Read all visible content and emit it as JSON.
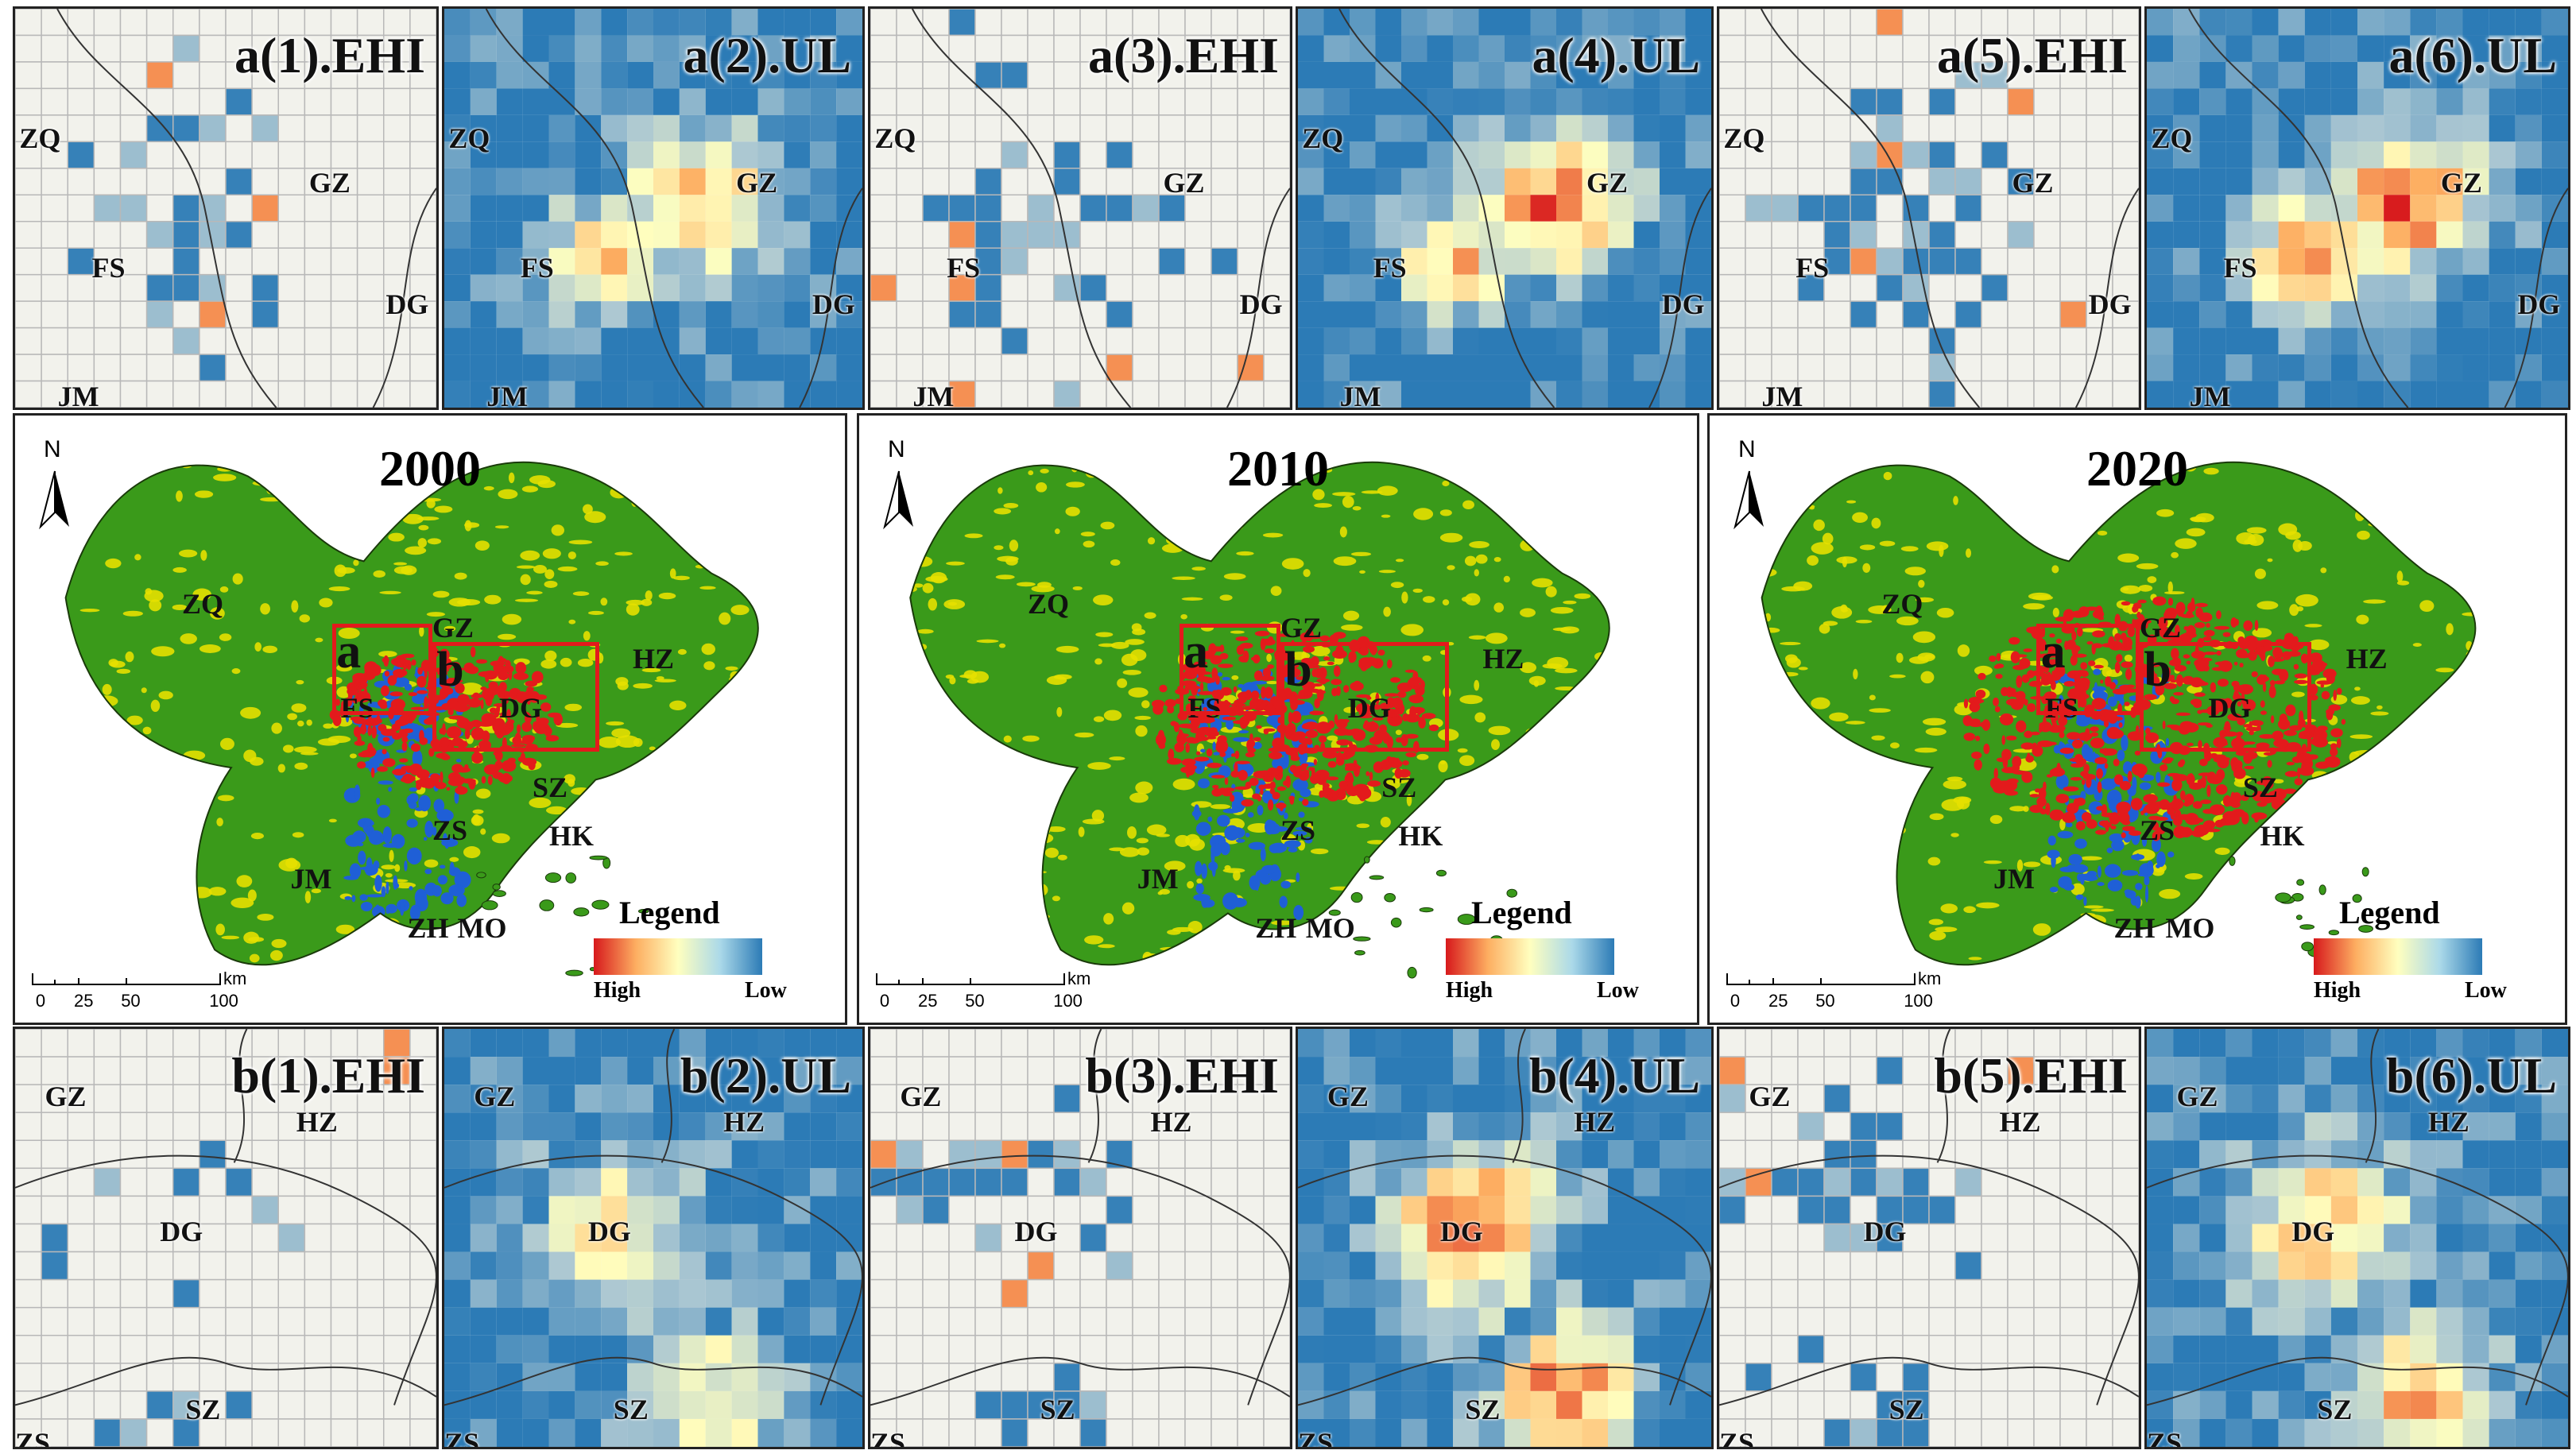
{
  "colors": {
    "high": "#d7191c",
    "mid": "#ffffbf",
    "low": "#2c7bb6",
    "empty": "#f2f2ec",
    "veg_green": "#3a9a1a",
    "veg_yellow": "#e6e000",
    "water": "#1f5fd6",
    "urban": "#e31a1c",
    "box": "#e31a1c"
  },
  "top_panels": [
    {
      "title": "a(1).EHI",
      "type": "EHI",
      "year": "2000",
      "labels": [
        "ZQ",
        "GZ",
        "FS",
        "DG",
        "JM"
      ]
    },
    {
      "title": "a(2).UL",
      "type": "UL",
      "year": "2000",
      "labels": [
        "ZQ",
        "GZ",
        "FS",
        "DG",
        "JM"
      ]
    },
    {
      "title": "a(3).EHI",
      "type": "EHI",
      "year": "2010",
      "labels": [
        "ZQ",
        "GZ",
        "FS",
        "DG",
        "JM"
      ]
    },
    {
      "title": "a(4).UL",
      "type": "UL",
      "year": "2010",
      "labels": [
        "ZQ",
        "GZ",
        "FS",
        "DG",
        "JM"
      ]
    },
    {
      "title": "a(5).EHI",
      "type": "EHI",
      "year": "2020",
      "labels": [
        "ZQ",
        "GZ",
        "FS",
        "DG",
        "JM"
      ]
    },
    {
      "title": "a(6).UL",
      "type": "UL",
      "year": "2020",
      "labels": [
        "ZQ",
        "GZ",
        "FS",
        "DG",
        "JM"
      ]
    }
  ],
  "bottom_panels": [
    {
      "title": "b(1).EHI",
      "type": "EHI",
      "year": "2000",
      "labels": [
        "GZ",
        "HZ",
        "DG",
        "SZ",
        "ZS"
      ]
    },
    {
      "title": "b(2).UL",
      "type": "UL",
      "year": "2000",
      "labels": [
        "GZ",
        "HZ",
        "DG",
        "SZ",
        "ZS"
      ]
    },
    {
      "title": "b(3).EHI",
      "type": "EHI",
      "year": "2010",
      "labels": [
        "GZ",
        "HZ",
        "DG",
        "SZ",
        "ZS"
      ]
    },
    {
      "title": "b(4).UL",
      "type": "UL",
      "year": "2010",
      "labels": [
        "GZ",
        "HZ",
        "DG",
        "SZ",
        "ZS"
      ]
    },
    {
      "title": "b(5).EHI",
      "type": "EHI",
      "year": "2020",
      "labels": [
        "GZ",
        "HZ",
        "DG",
        "SZ",
        "ZS"
      ]
    },
    {
      "title": "b(6).UL",
      "type": "UL",
      "year": "2020",
      "labels": [
        "GZ",
        "HZ",
        "DG",
        "SZ",
        "ZS"
      ]
    }
  ],
  "maps": [
    {
      "year": "2000",
      "urban_level": 0.25
    },
    {
      "year": "2010",
      "urban_level": 0.45
    },
    {
      "year": "2020",
      "urban_level": 0.8
    }
  ],
  "map_labels": {
    "north": "N",
    "cities": [
      "ZQ",
      "GZ",
      "HZ",
      "FS",
      "DG",
      "SZ",
      "ZS",
      "HK",
      "JM",
      "ZH",
      "MO"
    ],
    "box_a": "a",
    "box_b": "b",
    "legend_title": "Legend",
    "legend_high": "High",
    "legend_low": "Low",
    "scale_ticks": [
      "0",
      "25",
      "50",
      "100"
    ],
    "scale_unit": "km"
  }
}
